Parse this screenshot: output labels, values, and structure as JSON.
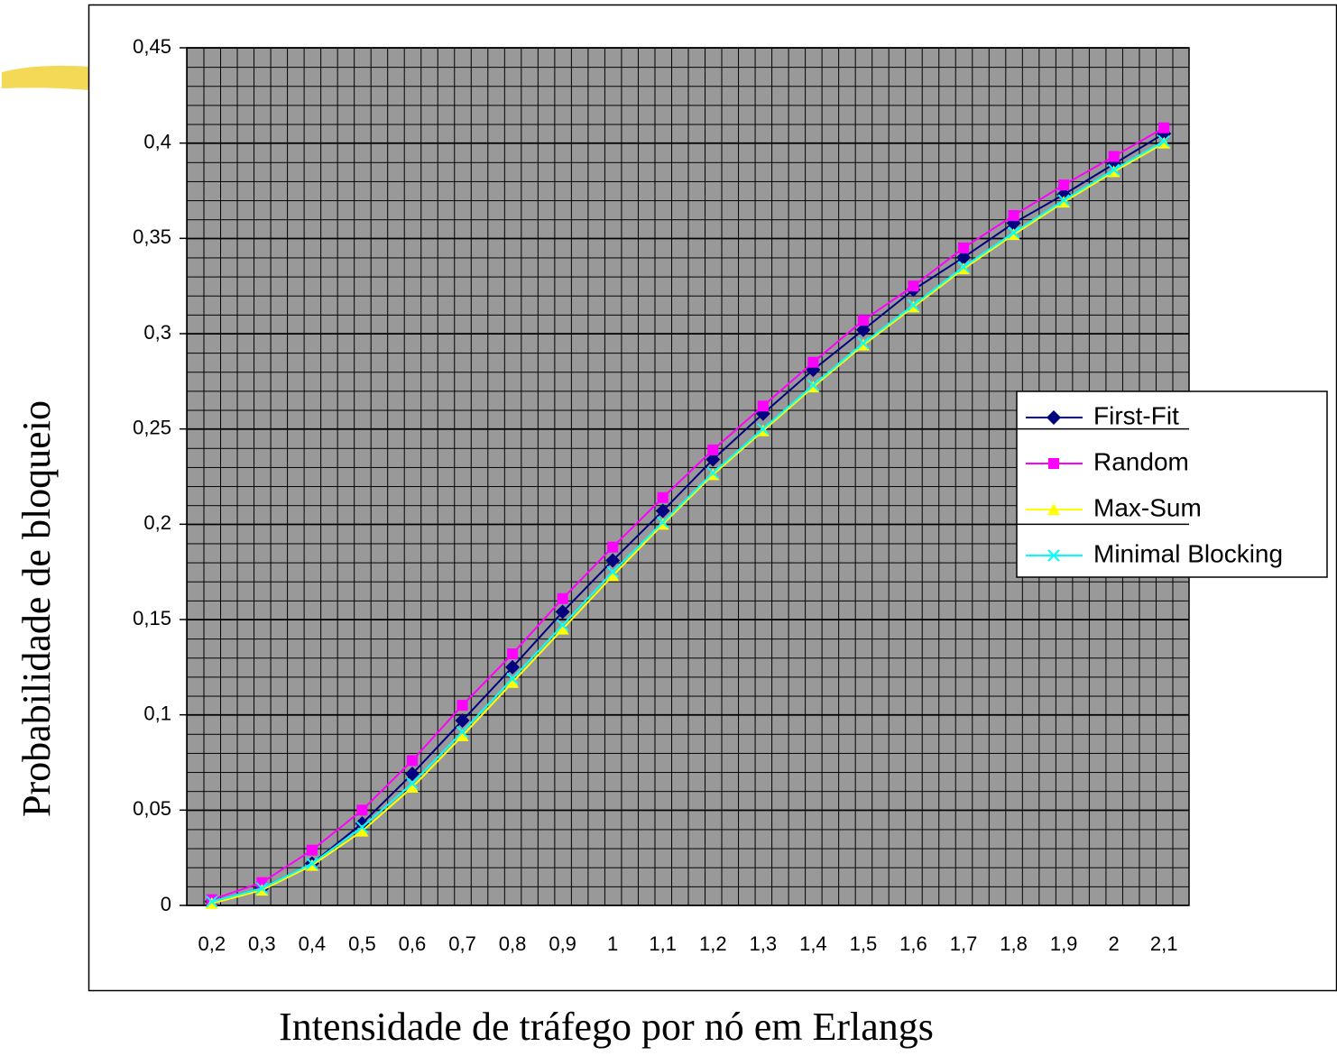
{
  "chart_data": {
    "type": "line",
    "x_label": "Intensidade de tráfego por nó em Erlangs",
    "y_label": "Probabilidade de bloqueio",
    "categories": [
      "0,2",
      "0,3",
      "0,4",
      "0,5",
      "0,6",
      "0,7",
      "0,8",
      "0,9",
      "1",
      "1,1",
      "1,2",
      "1,3",
      "1,4",
      "1,5",
      "1,6",
      "1,7",
      "1,8",
      "1,9",
      "2",
      "2,1"
    ],
    "series": [
      {
        "name": "First-Fit",
        "color": "#000080",
        "marker": "diamond",
        "values": [
          0.002,
          0.009,
          0.022,
          0.043,
          0.069,
          0.097,
          0.125,
          0.154,
          0.181,
          0.207,
          0.234,
          0.258,
          0.281,
          0.302,
          0.323,
          0.34,
          0.358,
          0.373,
          0.389,
          0.405
        ]
      },
      {
        "name": "Random",
        "color": "#ff00ff",
        "marker": "square",
        "values": [
          0.003,
          0.012,
          0.029,
          0.05,
          0.076,
          0.105,
          0.132,
          0.161,
          0.188,
          0.214,
          0.239,
          0.262,
          0.285,
          0.307,
          0.325,
          0.345,
          0.362,
          0.378,
          0.393,
          0.408
        ]
      },
      {
        "name": "Max-Sum",
        "color": "#ffff00",
        "marker": "triangle",
        "values": [
          0.001,
          0.008,
          0.021,
          0.039,
          0.062,
          0.089,
          0.117,
          0.145,
          0.173,
          0.2,
          0.226,
          0.249,
          0.272,
          0.294,
          0.314,
          0.334,
          0.352,
          0.369,
          0.385,
          0.4
        ]
      },
      {
        "name": "Minimal Blocking",
        "color": "#00ffff",
        "marker": "x",
        "values": [
          0.002,
          0.009,
          0.022,
          0.041,
          0.064,
          0.091,
          0.119,
          0.147,
          0.175,
          0.201,
          0.227,
          0.25,
          0.273,
          0.295,
          0.315,
          0.335,
          0.353,
          0.37,
          0.386,
          0.401
        ]
      }
    ],
    "ylim": [
      0,
      0.45
    ],
    "yticks": [
      0,
      {
        "value": 0.05,
        "label": "0,05"
      },
      {
        "value": 0.1,
        "label": "0,1"
      },
      {
        "value": 0.15,
        "label": "0,15"
      },
      {
        "value": 0.2,
        "label": "0,2"
      },
      {
        "value": 0.25,
        "label": "0,25"
      },
      {
        "value": 0.3,
        "label": "0,3"
      },
      {
        "value": 0.35,
        "label": "0,35"
      },
      {
        "value": 0.4,
        "label": "0,4"
      },
      {
        "value": 0.45,
        "label": "0,45"
      }
    ],
    "grid": true,
    "legend": "right"
  }
}
